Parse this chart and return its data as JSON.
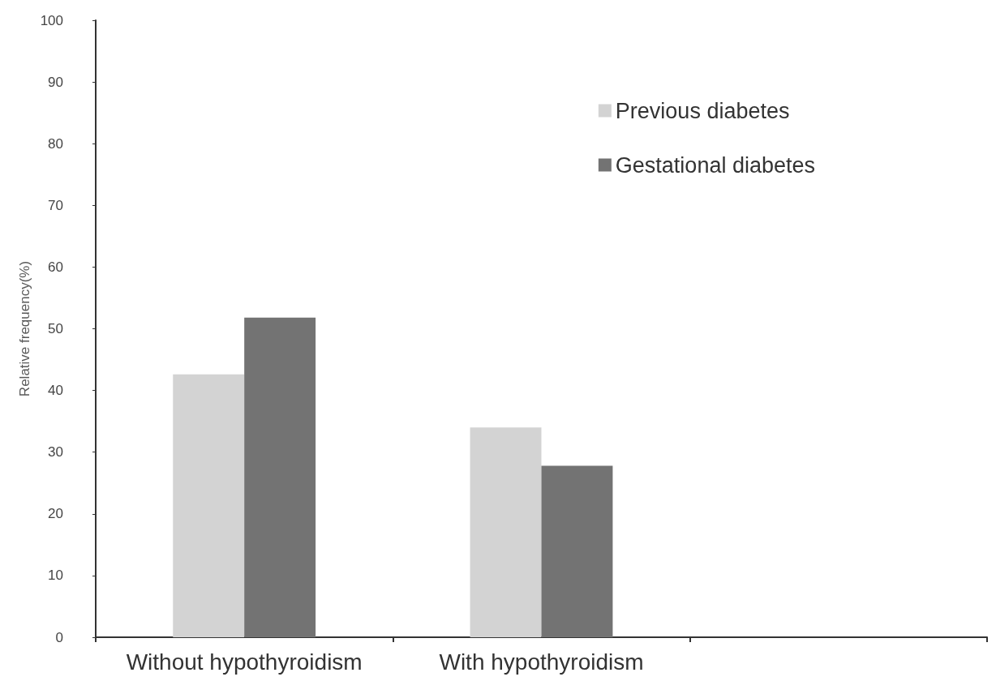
{
  "chart_data": {
    "type": "bar",
    "ylabel": "Relative frequency(%)",
    "categories": [
      "Without hypothyroidism",
      "With hypothyroidism",
      null
    ],
    "series": [
      {
        "name": "Previous diabetes",
        "color": "#d3d3d3",
        "values": [
          42.6,
          34.0,
          null
        ]
      },
      {
        "name": "Gestational diabetes",
        "color": "#737373",
        "values": [
          51.8,
          27.8,
          null
        ]
      }
    ],
    "ylim": [
      0,
      100
    ],
    "yticks": [
      0,
      10,
      20,
      30,
      40,
      50,
      60,
      70,
      80,
      90,
      100
    ],
    "grid": false,
    "legend": "top right"
  }
}
